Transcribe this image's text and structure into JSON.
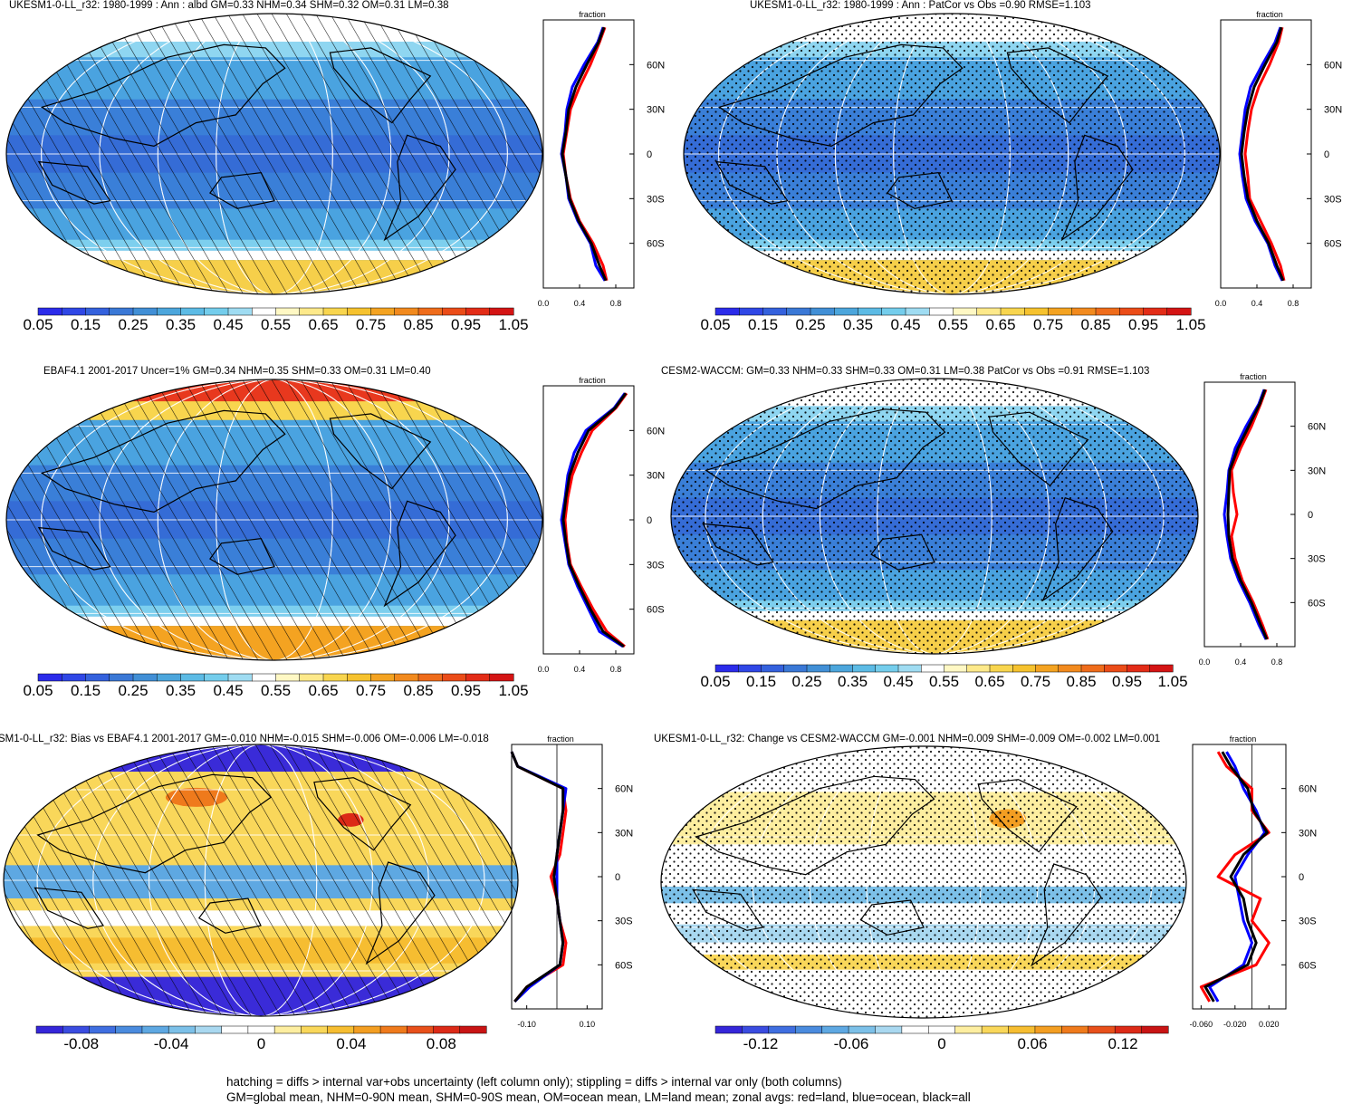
{
  "panels": [
    {
      "title": "UKESM1-0-LL_r32: 1980-1999 : Ann : albd GM=0.33 NHM=0.34 SHM=0.32 OM=0.31 LM=0.38",
      "map_style": "albedo",
      "polar_top": "#ffffff",
      "polar_bottom": "#f6cf4a",
      "overlay": "hatch",
      "colorbar": {
        "labels": [
          "0.05",
          "0.15",
          "0.25",
          "0.35",
          "0.45",
          "0.55",
          "0.65",
          "0.75",
          "0.85",
          "0.95",
          "1.05"
        ],
        "scheme": "albedo"
      },
      "zonal": {
        "title": "fraction",
        "xticks": [
          "0.0",
          "0.4",
          "0.8"
        ],
        "yticks": [
          "60N",
          "30N",
          "0",
          "30S",
          "60S"
        ]
      }
    },
    {
      "title": "UKESM1-0-LL_r32: 1980-1999 : Ann : PatCor vs Obs =0.90 RMSE=1.103",
      "map_style": "albedo",
      "polar_top": "#ffffff",
      "polar_bottom": "#f6cf4a",
      "overlay": "stipple",
      "colorbar": {
        "labels": [
          "0.05",
          "0.15",
          "0.25",
          "0.35",
          "0.45",
          "0.55",
          "0.65",
          "0.75",
          "0.85",
          "0.95",
          "1.05"
        ],
        "scheme": "albedo"
      },
      "zonal": {
        "title": "fraction",
        "xticks": [
          "0.0",
          "0.4",
          "0.8"
        ],
        "yticks": [
          "60N",
          "30N",
          "0",
          "30S",
          "60S"
        ]
      }
    },
    {
      "title": "EBAF4.1 2001-2017 Uncer=1% GM=0.34 NHM=0.35 SHM=0.33 OM=0.31 LM=0.40",
      "map_style": "albedo",
      "polar_top": "#e8381e",
      "polar_bottom": "#f4a321",
      "overlay": "hatch",
      "colorbar": {
        "labels": [
          "0.05",
          "0.15",
          "0.25",
          "0.35",
          "0.45",
          "0.55",
          "0.65",
          "0.75",
          "0.85",
          "0.95",
          "1.05"
        ],
        "scheme": "albedo"
      },
      "zonal": {
        "title": "fraction",
        "xticks": [
          "0.0",
          "0.4",
          "0.8"
        ],
        "yticks": [
          "60N",
          "30N",
          "0",
          "30S",
          "60S"
        ]
      }
    },
    {
      "title": "CESM2-WACCM: GM=0.33 NHM=0.33 SHM=0.33 OM=0.31 LM=0.38 PatCor vs Obs =0.91 RMSE=1.103",
      "map_style": "albedo",
      "polar_top": "#ffffff",
      "polar_bottom": "#f6cf4a",
      "overlay": "stipple",
      "colorbar": {
        "labels": [
          "0.05",
          "0.15",
          "0.25",
          "0.35",
          "0.45",
          "0.55",
          "0.65",
          "0.75",
          "0.85",
          "0.95",
          "1.05"
        ],
        "scheme": "albedo"
      },
      "zonal": {
        "title": "fraction",
        "xticks": [
          "0.0",
          "0.4",
          "0.8"
        ],
        "yticks": [
          "60N",
          "30N",
          "0",
          "30S",
          "60S"
        ]
      }
    },
    {
      "title": "SM1-0-LL_r32: Bias vs EBAF4.1 2001-2017 GM=-0.010 NHM=-0.015 SHM=-0.006 OM=-0.006 LM=-0.018",
      "map_style": "bias",
      "polar_top": "#3a2bd8",
      "polar_bottom": "#3a2bd8",
      "overlay": "hatch",
      "colorbar": {
        "labels": [
          "-0.08",
          "-0.04",
          "0",
          "0.04",
          "0.08"
        ],
        "scheme": "diff"
      },
      "zonal": {
        "title": "fraction",
        "xticks": [
          "-0.10",
          "0.10"
        ],
        "yticks": [
          "60N",
          "30N",
          "0",
          "30S",
          "60S"
        ]
      }
    },
    {
      "title": "UKESM1-0-LL_r32: Change vs CESM2-WACCM GM=-0.001 NHM=0.009 SHM=-0.009 OM=-0.002 LM=0.001",
      "map_style": "change",
      "polar_top": "#ffffff",
      "polar_bottom": "#ffffff",
      "overlay": "stipple",
      "colorbar": {
        "labels": [
          "-0.12",
          "-0.06",
          "0",
          "0.06",
          "0.12"
        ],
        "scheme": "diff"
      },
      "zonal": {
        "title": "fraction",
        "xticks": [
          "-0.060",
          "-0.020",
          "0.020"
        ],
        "yticks": [
          "60N",
          "30N",
          "0",
          "30S",
          "60S"
        ]
      }
    }
  ],
  "colors": {
    "albedo_scale": [
      "#2b2bea",
      "#2f47e6",
      "#3461dd",
      "#3a78d6",
      "#418fd6",
      "#4ca6dc",
      "#5cbbe5",
      "#74cdec",
      "#9fdcf2",
      "#ffffff",
      "#fff8c4",
      "#fde98a",
      "#f8d54e",
      "#f6c22e",
      "#f4a321",
      "#f28a1e",
      "#ef6c1b",
      "#eb4c18",
      "#e32c17",
      "#d41414"
    ],
    "diff_scale": [
      "#3526d9",
      "#3a4ce0",
      "#3f6ee0",
      "#4a8bde",
      "#5ea8e2",
      "#7cc0e8",
      "#a9d8f0",
      "#ffffff",
      "#ffffff",
      "#fdeea0",
      "#f9d75a",
      "#f6bd31",
      "#f39e22",
      "#ef7a1c",
      "#e8501b",
      "#dc2a17",
      "#c81414"
    ],
    "land_series": "#ff0000",
    "ocean_series": "#0000ff",
    "all_series": "#000000"
  },
  "chart_data": [
    {
      "type": "heatmap",
      "title": "UKESM1-0-LL_r32: 1980-1999 : Ann : albd GM=0.33 NHM=0.34 SHM=0.32 OM=0.31 LM=0.38",
      "colorbar_ticks": [
        0.05,
        0.15,
        0.25,
        0.35,
        0.45,
        0.55,
        0.65,
        0.75,
        0.85,
        0.95,
        1.05
      ],
      "zonal_mean": {
        "type": "line",
        "xlabel": "fraction",
        "xlim": [
          0.0,
          1.0
        ],
        "ylim": [
          -90,
          90
        ],
        "latitudes": [
          -85,
          -75,
          -60,
          -45,
          -30,
          -15,
          0,
          15,
          30,
          45,
          60,
          75,
          85
        ],
        "series": [
          {
            "name": "land",
            "values": [
              0.7,
              0.66,
              0.55,
              0.4,
              0.3,
              0.25,
              0.22,
              0.26,
              0.3,
              0.4,
              0.52,
              0.62,
              0.68
            ]
          },
          {
            "name": "ocean",
            "values": [
              0.68,
              0.58,
              0.52,
              0.38,
              0.28,
              0.25,
              0.2,
              0.24,
              0.26,
              0.32,
              0.45,
              0.6,
              0.66
            ]
          },
          {
            "name": "all",
            "values": [
              0.69,
              0.62,
              0.53,
              0.39,
              0.29,
              0.25,
              0.21,
              0.25,
              0.28,
              0.36,
              0.48,
              0.61,
              0.67
            ]
          }
        ]
      }
    },
    {
      "type": "heatmap",
      "title": "UKESM1-0-LL_r32: 1980-1999 : Ann : PatCor vs Obs =0.90 RMSE=1.103",
      "colorbar_ticks": [
        0.05,
        0.15,
        0.25,
        0.35,
        0.45,
        0.55,
        0.65,
        0.75,
        0.85,
        0.95,
        1.05
      ],
      "zonal_mean": {
        "type": "line",
        "xlabel": "fraction",
        "xlim": [
          0.0,
          1.0
        ],
        "ylim": [
          -90,
          90
        ],
        "latitudes": [
          -85,
          -75,
          -60,
          -45,
          -30,
          -15,
          0,
          15,
          30,
          45,
          60,
          75,
          85
        ],
        "series": [
          {
            "name": "land",
            "values": [
              0.7,
              0.66,
              0.56,
              0.44,
              0.32,
              0.3,
              0.27,
              0.3,
              0.34,
              0.42,
              0.54,
              0.64,
              0.68
            ]
          },
          {
            "name": "ocean",
            "values": [
              0.68,
              0.6,
              0.52,
              0.38,
              0.28,
              0.24,
              0.21,
              0.24,
              0.27,
              0.33,
              0.46,
              0.6,
              0.66
            ]
          },
          {
            "name": "all",
            "values": [
              0.69,
              0.62,
              0.53,
              0.4,
              0.3,
              0.26,
              0.23,
              0.26,
              0.3,
              0.37,
              0.49,
              0.62,
              0.67
            ]
          }
        ]
      }
    },
    {
      "type": "heatmap",
      "title": "EBAF4.1 2001-2017 Uncer=1% GM=0.34 NHM=0.35 SHM=0.33 OM=0.31 LM=0.40",
      "colorbar_ticks": [
        0.05,
        0.15,
        0.25,
        0.35,
        0.45,
        0.55,
        0.65,
        0.75,
        0.85,
        0.95,
        1.05
      ],
      "zonal_mean": {
        "type": "line",
        "xlabel": "fraction",
        "xlim": [
          0.0,
          1.0
        ],
        "ylim": [
          -90,
          90
        ],
        "latitudes": [
          -85,
          -75,
          -60,
          -45,
          -30,
          -15,
          0,
          15,
          30,
          45,
          60,
          75,
          85
        ],
        "series": [
          {
            "name": "land",
            "values": [
              0.9,
              0.7,
              0.55,
              0.42,
              0.3,
              0.26,
              0.24,
              0.27,
              0.32,
              0.42,
              0.54,
              0.8,
              0.92
            ]
          },
          {
            "name": "ocean",
            "values": [
              0.88,
              0.62,
              0.5,
              0.38,
              0.28,
              0.24,
              0.2,
              0.24,
              0.27,
              0.34,
              0.47,
              0.78,
              0.9
            ]
          },
          {
            "name": "all",
            "values": [
              0.89,
              0.66,
              0.52,
              0.4,
              0.29,
              0.25,
              0.22,
              0.25,
              0.29,
              0.38,
              0.5,
              0.79,
              0.91
            ]
          }
        ]
      }
    },
    {
      "type": "heatmap",
      "title": "CESM2-WACCM: GM=0.33 NHM=0.33 SHM=0.33 OM=0.31 LM=0.38 PatCor vs Obs =0.91 RMSE=1.103",
      "colorbar_ticks": [
        0.05,
        0.15,
        0.25,
        0.35,
        0.45,
        0.55,
        0.65,
        0.75,
        0.85,
        0.95,
        1.05
      ],
      "zonal_mean": {
        "type": "line",
        "xlabel": "fraction",
        "xlim": [
          0.0,
          1.0
        ],
        "ylim": [
          -90,
          90
        ],
        "latitudes": [
          -85,
          -75,
          -60,
          -45,
          -30,
          -15,
          0,
          15,
          30,
          45,
          60,
          75,
          85
        ],
        "series": [
          {
            "name": "land",
            "values": [
              0.7,
              0.64,
              0.54,
              0.42,
              0.34,
              0.3,
              0.36,
              0.32,
              0.3,
              0.4,
              0.52,
              0.62,
              0.68
            ]
          },
          {
            "name": "ocean",
            "values": [
              0.68,
              0.6,
              0.5,
              0.38,
              0.29,
              0.25,
              0.22,
              0.25,
              0.27,
              0.34,
              0.46,
              0.6,
              0.66
            ]
          },
          {
            "name": "all",
            "values": [
              0.69,
              0.62,
              0.52,
              0.4,
              0.31,
              0.27,
              0.26,
              0.27,
              0.28,
              0.37,
              0.49,
              0.61,
              0.67
            ]
          }
        ]
      }
    },
    {
      "type": "heatmap",
      "title": "SM1-0-LL_r32: Bias vs EBAF4.1 2001-2017 GM=-0.010 NHM=-0.015 SHM=-0.006 OM=-0.006 LM=-0.018",
      "colorbar_ticks": [
        -0.08,
        -0.04,
        0,
        0.04,
        0.08
      ],
      "zonal_mean": {
        "type": "line",
        "xlabel": "fraction",
        "xlim": [
          -0.15,
          0.15
        ],
        "ylim": [
          -90,
          90
        ],
        "latitudes": [
          -85,
          -75,
          -60,
          -45,
          -30,
          -15,
          0,
          15,
          30,
          45,
          60,
          75,
          85
        ],
        "series": [
          {
            "name": "land",
            "values": [
              -0.14,
              -0.1,
              0.02,
              0.03,
              0.01,
              0.0,
              -0.02,
              0.01,
              0.02,
              0.03,
              0.02,
              -0.13,
              -0.15
            ]
          },
          {
            "name": "ocean",
            "values": [
              -0.14,
              -0.09,
              0.01,
              0.02,
              0.01,
              0.0,
              0.0,
              0.0,
              0.01,
              0.02,
              0.03,
              -0.13,
              -0.15
            ]
          },
          {
            "name": "all",
            "values": [
              -0.14,
              -0.1,
              0.01,
              0.02,
              0.01,
              0.0,
              -0.01,
              0.0,
              0.01,
              0.02,
              0.02,
              -0.13,
              -0.15
            ]
          }
        ]
      }
    },
    {
      "type": "heatmap",
      "title": "UKESM1-0-LL_r32: Change vs CESM2-WACCM GM=-0.001 NHM=0.009 SHM=-0.009 OM=-0.002 LM=0.001",
      "colorbar_ticks": [
        -0.12,
        -0.06,
        0,
        0.06,
        0.12
      ],
      "zonal_mean": {
        "type": "line",
        "xlabel": "fraction",
        "xlim": [
          -0.07,
          0.04
        ],
        "ylim": [
          -90,
          90
        ],
        "latitudes": [
          -85,
          -75,
          -60,
          -45,
          -30,
          -15,
          0,
          15,
          30,
          45,
          60,
          75,
          85
        ],
        "series": [
          {
            "name": "land",
            "values": [
              -0.05,
              -0.06,
              0.005,
              0.02,
              0.0,
              0.01,
              -0.04,
              -0.02,
              0.02,
              0.0,
              0.0,
              -0.03,
              -0.04
            ]
          },
          {
            "name": "ocean",
            "values": [
              -0.04,
              -0.05,
              -0.01,
              0.0,
              -0.01,
              -0.015,
              -0.02,
              -0.005,
              0.015,
              0.005,
              -0.01,
              -0.02,
              -0.03
            ]
          },
          {
            "name": "all",
            "values": [
              -0.045,
              -0.055,
              -0.005,
              0.005,
              -0.005,
              -0.01,
              -0.025,
              -0.01,
              0.018,
              0.002,
              -0.005,
              -0.025,
              -0.035
            ]
          }
        ]
      }
    }
  ],
  "footer": [
    "hatching = diffs > internal var+obs uncertainty (left column only); stippling = diffs > internal var only (both columns)",
    "GM=global mean, NHM=0-90N mean, SHM=0-90S mean, OM=ocean mean, LM=land mean; zonal avgs: red=land, blue=ocean, black=all"
  ]
}
